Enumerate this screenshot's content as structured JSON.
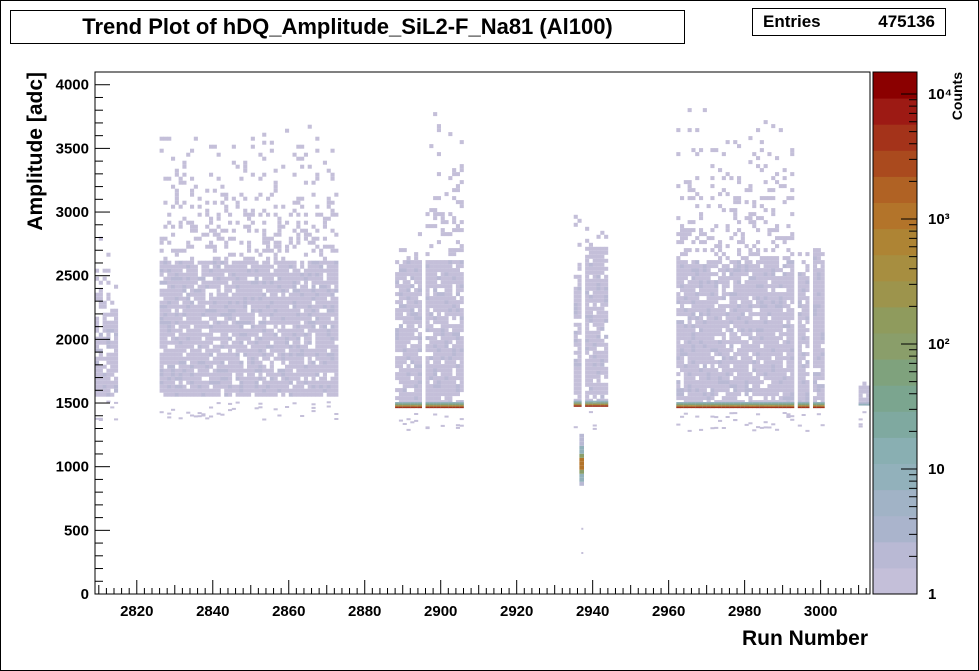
{
  "title": "Trend Plot of hDQ_Amplitude_SiL2-F_Na81 (Al100)",
  "stats": {
    "label": "Entries",
    "value": "475136"
  },
  "chart_data": {
    "type": "heatmap",
    "title": "Trend Plot of hDQ_Amplitude_SiL2-F_Na81 (Al100)",
    "xlabel": "Run Number",
    "ylabel": "Amplitude [adc]",
    "zlabel": "Counts",
    "entries": 475136,
    "xlim": [
      2809,
      3013
    ],
    "ylim": [
      0,
      4100
    ],
    "zscale": "log",
    "zlim": [
      1,
      15000
    ],
    "grid": false,
    "palette": [
      "#c4bfd9",
      "#b9b9d4",
      "#aab4cc",
      "#a1b3c6",
      "#92b1bb",
      "#89afb2",
      "#7fa9a0",
      "#7ba58f",
      "#7fa27d",
      "#8a9e6a",
      "#8f9b5d",
      "#9d944c",
      "#a78e40",
      "#ae8434",
      "#b3742a",
      "#b06224",
      "#aa4a1e",
      "#a4331a",
      "#9d1a14",
      "#8b0000"
    ],
    "xticks": [
      2820,
      2840,
      2860,
      2880,
      2900,
      2920,
      2940,
      2960,
      2980,
      3000
    ],
    "yticks": [
      0,
      500,
      1000,
      1500,
      2000,
      2500,
      3000,
      3500,
      4000
    ],
    "zticks": [
      "1",
      "10",
      "10²",
      "10³",
      "10⁴"
    ],
    "run_groups": [
      {
        "x": [
          2809,
          2815
        ],
        "floor": 1550,
        "core_top": 2200,
        "sparse_top": 2900,
        "edge": "none"
      },
      {
        "x": [
          2826,
          2873
        ],
        "floor": 1550,
        "core_top": 2600,
        "sparse_top": 3700,
        "edge": "none"
      },
      {
        "x": [
          2888,
          2895
        ],
        "floor": 1460,
        "core_top": 2600,
        "sparse_top": 2850,
        "edge": "strong"
      },
      {
        "x": [
          2896,
          2906
        ],
        "floor": 1460,
        "core_top": 2600,
        "sparse_top": 3800,
        "edge": "strong"
      },
      {
        "x": [
          2935,
          2937
        ],
        "floor": 1470,
        "core_top": 2500,
        "sparse_top": 3050,
        "edge": "strong"
      },
      {
        "x": [
          2938,
          2944
        ],
        "floor": 1470,
        "core_top": 2700,
        "sparse_top": 2950,
        "edge": "strong"
      },
      {
        "x": [
          2962,
          2993
        ],
        "floor": 1460,
        "core_top": 2600,
        "sparse_top": 3800,
        "edge": "strong"
      },
      {
        "x": [
          2994,
          2997
        ],
        "floor": 1460,
        "core_top": 2500,
        "sparse_top": 2700,
        "edge": "strong"
      },
      {
        "x": [
          2998,
          3001
        ],
        "floor": 1460,
        "core_top": 2700,
        "sparse_top": 2800,
        "edge": "strong"
      },
      {
        "x": [
          3010,
          3013
        ],
        "floor": 1480,
        "core_top": 1650,
        "sparse_top": 1650,
        "edge": "weak"
      }
    ],
    "low_tail": {
      "x": [
        2936,
        2938
      ],
      "y_range": [
        850,
        1250
      ],
      "peak": 1000
    }
  }
}
